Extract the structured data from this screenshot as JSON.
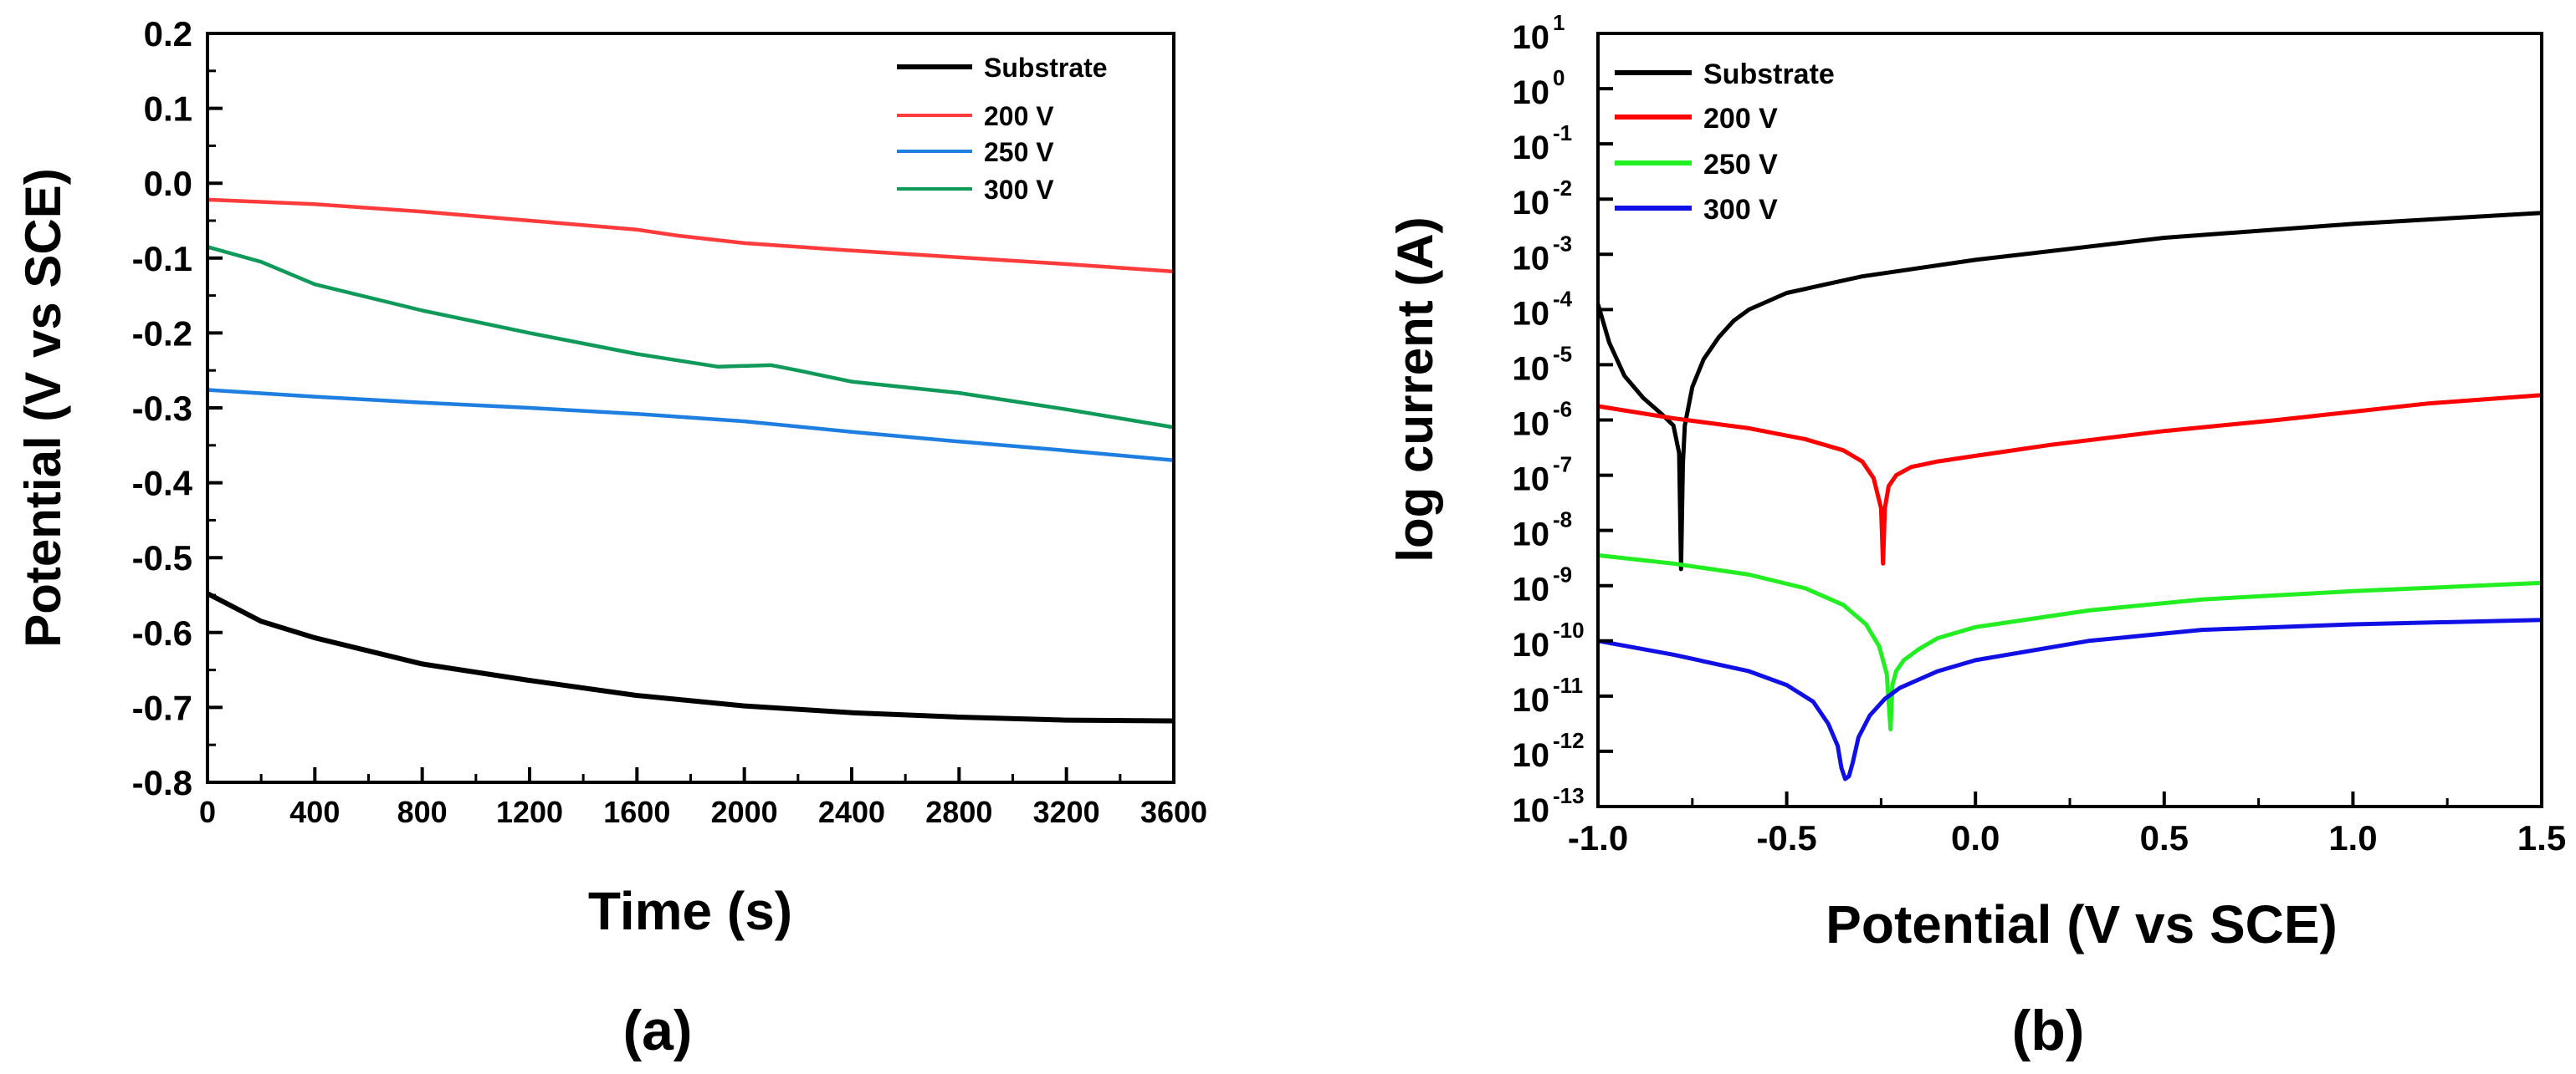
{
  "colors": {
    "substrate_a": "#000000",
    "v200_a": "#ff3b3b",
    "v250_a": "#1f7fe0",
    "v300_a": "#0f9a5a",
    "substrate_b": "#000000",
    "v200_b": "#ff0000",
    "v250_b": "#22ee22",
    "v300_b": "#1010e6"
  },
  "chart_data": [
    {
      "type": "line",
      "panel_label": "(a)",
      "xlabel": "Time (s)",
      "ylabel": "Potential (V vs SCE)",
      "xlim": [
        0,
        3600
      ],
      "ylim": [
        -0.8,
        0.2
      ],
      "x_ticks": [
        0,
        400,
        800,
        1200,
        1600,
        2000,
        2400,
        2800,
        3200,
        3600
      ],
      "x_tick_labels": [
        "0",
        "400",
        "800",
        "1200",
        "1600",
        "2000",
        "2400",
        "2800",
        "3200",
        "3600"
      ],
      "y_ticks": [
        0.2,
        0.1,
        0.0,
        -0.1,
        -0.2,
        -0.3,
        -0.4,
        -0.5,
        -0.6,
        -0.7,
        -0.8
      ],
      "y_tick_labels": [
        "0.2",
        "0.1",
        "0.0",
        "-0.1",
        "-0.2",
        "-0.3",
        "-0.4",
        "-0.5",
        "-0.6",
        "-0.7",
        "-0.8"
      ],
      "legend_position": "top-right",
      "series": [
        {
          "name": "Substrate",
          "color_key": "substrate_a",
          "x": [
            0,
            200,
            400,
            800,
            1200,
            1600,
            2000,
            2400,
            2800,
            3200,
            3600
          ],
          "y": [
            -0.548,
            -0.585,
            -0.607,
            -0.642,
            -0.664,
            -0.684,
            -0.698,
            -0.707,
            -0.713,
            -0.717,
            -0.718
          ]
        },
        {
          "name": "200 V",
          "color_key": "v200_a",
          "x": [
            0,
            400,
            800,
            1200,
            1600,
            1750,
            2000,
            2400,
            2800,
            3200,
            3600
          ],
          "y": [
            -0.022,
            -0.028,
            -0.038,
            -0.05,
            -0.062,
            -0.07,
            -0.08,
            -0.09,
            -0.099,
            -0.108,
            -0.118
          ]
        },
        {
          "name": "250 V",
          "color_key": "v250_a",
          "x": [
            0,
            400,
            800,
            1200,
            1600,
            2000,
            2400,
            2800,
            3200,
            3600
          ],
          "y": [
            -0.276,
            -0.285,
            -0.293,
            -0.3,
            -0.308,
            -0.318,
            -0.332,
            -0.345,
            -0.357,
            -0.37
          ]
        },
        {
          "name": "300 V",
          "color_key": "v300_a",
          "x": [
            0,
            200,
            400,
            800,
            1200,
            1600,
            1900,
            2100,
            2200,
            2400,
            2800,
            3200,
            3600
          ],
          "y": [
            -0.085,
            -0.105,
            -0.135,
            -0.17,
            -0.2,
            -0.228,
            -0.245,
            -0.243,
            -0.25,
            -0.265,
            -0.28,
            -0.302,
            -0.326
          ]
        }
      ]
    },
    {
      "type": "line",
      "panel_label": "(b)",
      "xlabel": "Potential (V vs SCE)",
      "ylabel": "log current (A)",
      "y_scale": "log",
      "xlim": [
        -1.0,
        1.5
      ],
      "ylim_exponent": [
        -13,
        1
      ],
      "x_ticks": [
        -1.0,
        -0.5,
        0.0,
        0.5,
        1.0,
        1.5
      ],
      "x_tick_labels": [
        "-1.0",
        "-0.5",
        "0.0",
        "0.5",
        "1.0",
        "1.5"
      ],
      "y_tick_exponents": [
        1,
        0,
        -1,
        -2,
        -3,
        -4,
        -5,
        -6,
        -7,
        -8,
        -9,
        -10,
        -11,
        -12,
        -13
      ],
      "y_tick_base": "10",
      "y_tick_exponent_labels": [
        "1",
        "0",
        "-1",
        "-2",
        "-3",
        "-4",
        "-5",
        "-6",
        "-7",
        "-8",
        "-9",
        "-10",
        "-11",
        "-12",
        "-13"
      ],
      "legend_position": "top-left",
      "series": [
        {
          "name": "Substrate",
          "color_key": "substrate_b",
          "x": [
            -1.0,
            -0.97,
            -0.93,
            -0.88,
            -0.83,
            -0.8,
            -0.785,
            -0.78,
            -0.775,
            -0.77,
            -0.75,
            -0.72,
            -0.68,
            -0.64,
            -0.6,
            -0.5,
            -0.3,
            0.0,
            0.5,
            1.0,
            1.5
          ],
          "log_y": [
            -3.9,
            -4.6,
            -5.2,
            -5.6,
            -5.9,
            -6.1,
            -6.6,
            -8.7,
            -6.8,
            -6.1,
            -5.4,
            -4.9,
            -4.5,
            -4.2,
            -4.0,
            -3.7,
            -3.4,
            -3.1,
            -2.7,
            -2.45,
            -2.25
          ]
        },
        {
          "name": "200 V",
          "color_key": "v200_b",
          "x": [
            -1.0,
            -0.8,
            -0.6,
            -0.45,
            -0.35,
            -0.3,
            -0.27,
            -0.25,
            -0.245,
            -0.24,
            -0.23,
            -0.21,
            -0.17,
            -0.1,
            0.0,
            0.2,
            0.5,
            0.8,
            1.0,
            1.2,
            1.5
          ],
          "log_y": [
            -5.75,
            -5.97,
            -6.15,
            -6.35,
            -6.55,
            -6.75,
            -7.05,
            -7.6,
            -8.6,
            -7.6,
            -7.2,
            -7.0,
            -6.85,
            -6.75,
            -6.65,
            -6.45,
            -6.2,
            -6.0,
            -5.85,
            -5.7,
            -5.55
          ]
        },
        {
          "name": "250 V",
          "color_key": "v250_b",
          "x": [
            -1.0,
            -0.8,
            -0.6,
            -0.45,
            -0.35,
            -0.29,
            -0.255,
            -0.235,
            -0.225,
            -0.22,
            -0.21,
            -0.19,
            -0.15,
            -0.1,
            0.0,
            0.3,
            0.6,
            1.0,
            1.5
          ],
          "log_y": [
            -8.45,
            -8.6,
            -8.8,
            -9.05,
            -9.35,
            -9.7,
            -10.1,
            -10.6,
            -11.6,
            -10.8,
            -10.55,
            -10.35,
            -10.15,
            -9.95,
            -9.75,
            -9.45,
            -9.25,
            -9.1,
            -8.95
          ]
        },
        {
          "name": "300 V",
          "color_key": "v300_b",
          "x": [
            -1.0,
            -0.8,
            -0.6,
            -0.5,
            -0.43,
            -0.39,
            -0.365,
            -0.355,
            -0.345,
            -0.335,
            -0.325,
            -0.31,
            -0.28,
            -0.24,
            -0.2,
            -0.1,
            0.0,
            0.3,
            0.6,
            1.0,
            1.5
          ],
          "log_y": [
            -10.0,
            -10.25,
            -10.55,
            -10.8,
            -11.1,
            -11.5,
            -11.9,
            -12.3,
            -12.5,
            -12.45,
            -12.2,
            -11.75,
            -11.35,
            -11.05,
            -10.85,
            -10.55,
            -10.35,
            -10.0,
            -9.8,
            -9.7,
            -9.62
          ]
        }
      ]
    }
  ]
}
